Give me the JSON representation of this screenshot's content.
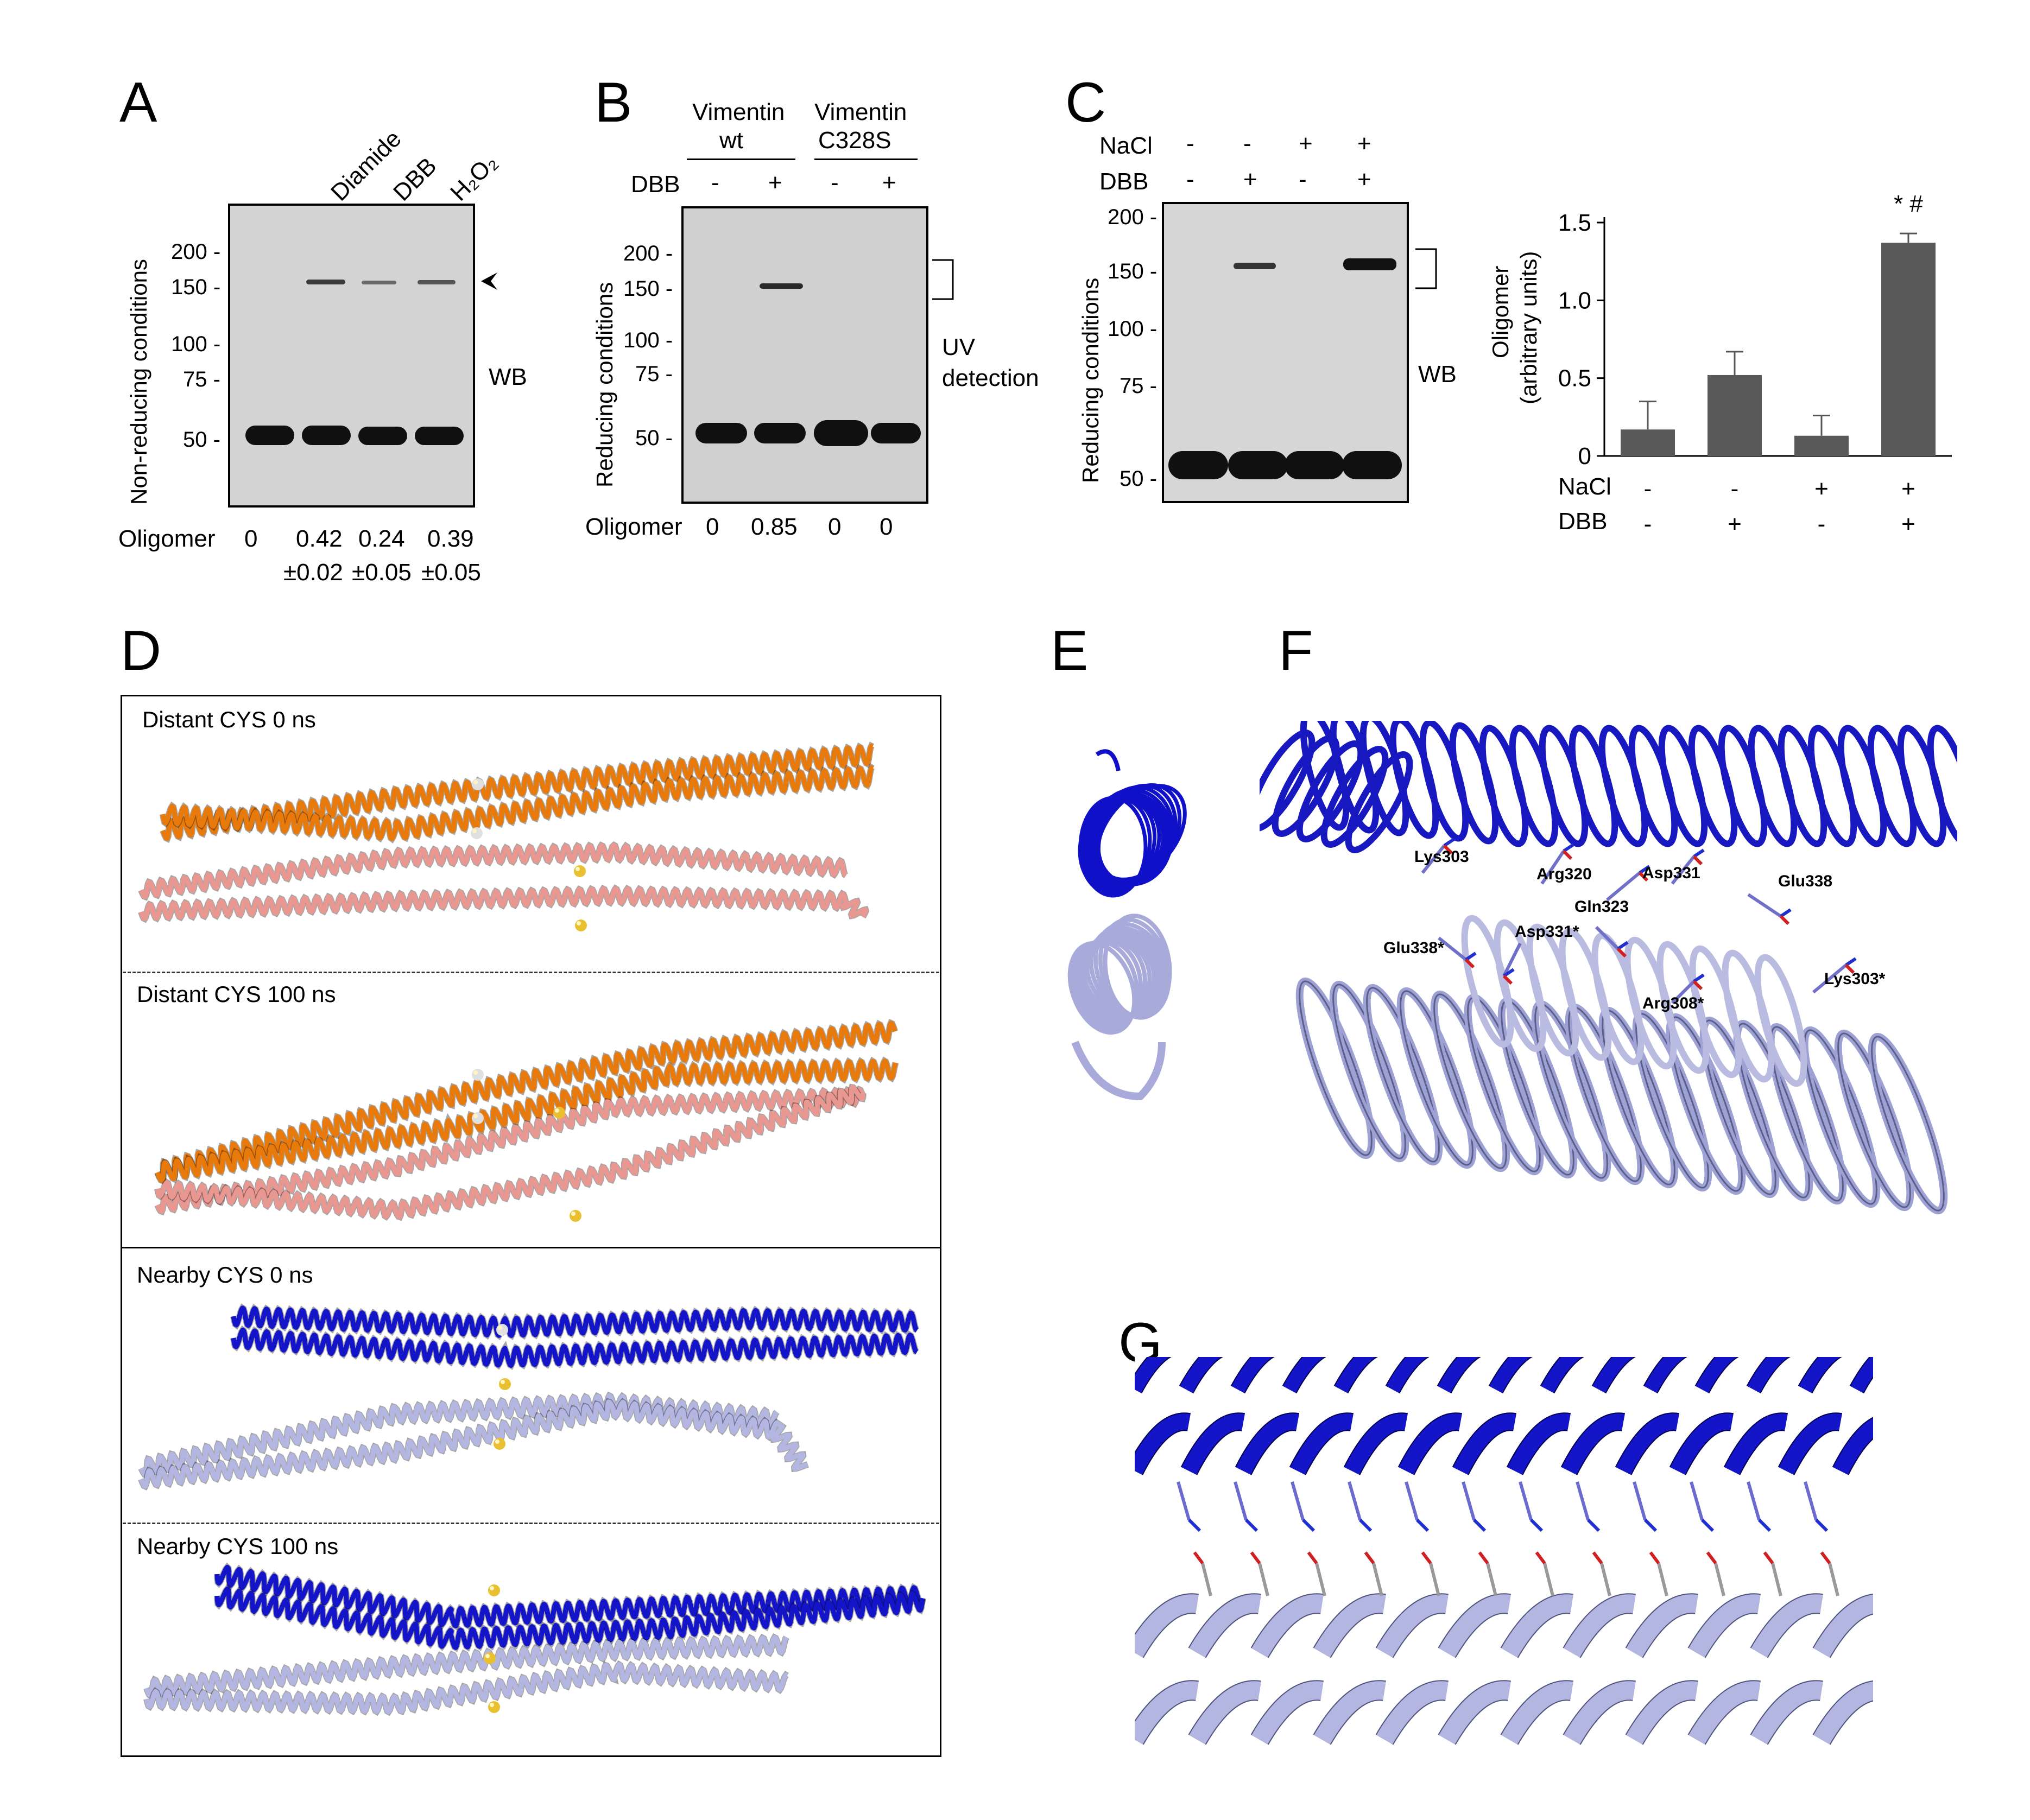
{
  "panels": {
    "A": "A",
    "B": "B",
    "C": "C",
    "D": "D",
    "E": "E",
    "F": "F",
    "G": "G"
  },
  "panelA": {
    "lanes": [
      "Diamide",
      "DBB",
      "H₂O₂"
    ],
    "ylabel": "Non-reducing conditions",
    "markers": [
      "200 -",
      "150 -",
      "100 -",
      "75 -",
      "50 -"
    ],
    "wb": "WB",
    "oligomer_label": "Oligomer",
    "oligomer_values": [
      "0",
      "0.42",
      "0.24",
      "0.39"
    ],
    "oligomer_sd": [
      "±0.02",
      "±0.05",
      "±0.05"
    ]
  },
  "panelB": {
    "groups": [
      {
        "line1": "Vimentin",
        "line2": "wt"
      },
      {
        "line1": "Vimentin",
        "line2": "C328S"
      }
    ],
    "dbb_label": "DBB",
    "dbb_signs": [
      "-",
      "+",
      "-",
      "+"
    ],
    "ylabel": "Reducing conditions",
    "markers": [
      "200 -",
      "150 -",
      "100 -",
      "75 -",
      "50 -"
    ],
    "uv_line1": "UV",
    "uv_line2": "detection",
    "oligomer_label": "Oligomer",
    "oligomer_values": [
      "0",
      "0.85",
      "0",
      "0"
    ]
  },
  "panelC": {
    "nacl_label": "NaCl",
    "dbb_label": "DBB",
    "nacl_signs": [
      "-",
      "-",
      "+",
      "+"
    ],
    "dbb_signs": [
      "-",
      "+",
      "-",
      "+"
    ],
    "ylabel": "Reducing conditions",
    "markers": [
      "200 -",
      "150 -",
      "100 -",
      "75 -",
      "50 -"
    ],
    "wb": "WB"
  },
  "chart_data": {
    "type": "bar",
    "categories": [
      "1",
      "2",
      "3",
      "4"
    ],
    "values": [
      0.17,
      0.52,
      0.13,
      1.37
    ],
    "errors": [
      0.18,
      0.15,
      0.13,
      0.06
    ],
    "ylabel": "Oligomer (arbitrary units)",
    "ylabel_line1": "Oligomer",
    "ylabel_line2": "(arbitrary units)",
    "yticks": [
      "0",
      "0.5",
      "1.0",
      "1.5"
    ],
    "ylim": [
      0,
      1.5
    ],
    "nacl_label": "NaCl",
    "dbb_label": "DBB",
    "nacl_signs": [
      "-",
      "-",
      "+",
      "+"
    ],
    "dbb_signs": [
      "-",
      "+",
      "-",
      "+"
    ],
    "annotation": "* #",
    "bar_color": "#595959"
  },
  "panelD": {
    "titles": [
      "Distant CYS 0 ns",
      "Distant CYS 100 ns",
      "Nearby CYS 0 ns",
      "Nearby CYS 100 ns"
    ],
    "colors": {
      "orange": "#e87a0c",
      "salmon": "#e99791",
      "blue": "#1414c8",
      "lavender": "#b4b6e2",
      "sulfur": "#e8c030"
    }
  },
  "panelF": {
    "residues": [
      "Lys303",
      "Arg320",
      "Asp331",
      "Glu338",
      "Gln323",
      "Asp331*",
      "Glu338*",
      "Arg308*",
      "Lys303*"
    ]
  }
}
